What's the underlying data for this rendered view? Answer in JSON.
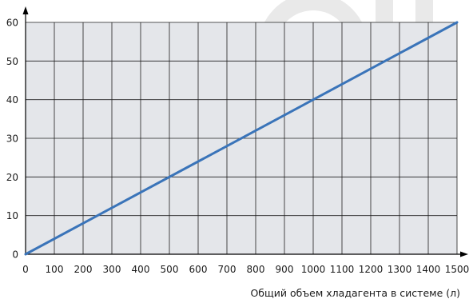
{
  "chart_data": {
    "type": "line",
    "title": "",
    "xlabel": "Общий объем хладагента в системе (л)",
    "ylabel": "",
    "xlim": [
      0,
      1500
    ],
    "ylim": [
      0,
      60
    ],
    "x_ticks": [
      "0",
      "100",
      "200",
      "300",
      "400",
      "500",
      "600",
      "700",
      "800",
      "900",
      "1000",
      "1100",
      "1200",
      "1300",
      "1400",
      "1500"
    ],
    "y_ticks": [
      "0",
      "10",
      "20",
      "30",
      "40",
      "50",
      "60"
    ],
    "grid": true,
    "series": [
      {
        "x": [
          0,
          1500
        ],
        "y": [
          0,
          60
        ]
      }
    ],
    "colors": {
      "plot_background": "#e4e6ea",
      "grid": "#1f1f1f",
      "line": "#3a74b9",
      "watermark": "#e9e9e9"
    }
  }
}
